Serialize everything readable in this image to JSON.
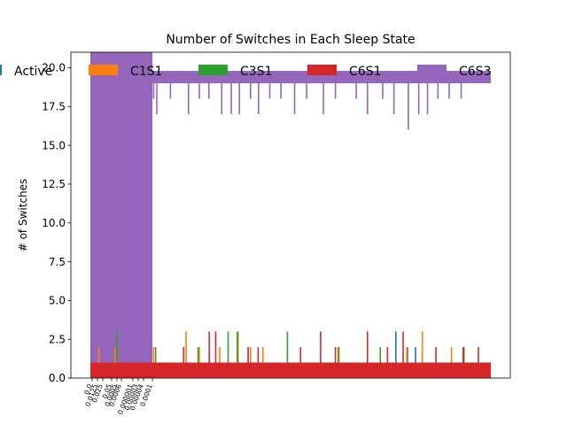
{
  "chart_data": {
    "type": "bar",
    "title": "Number of Switches in Each Sleep State",
    "xlabel": "",
    "ylabel": "# of Switches",
    "ylim": [
      0,
      21
    ],
    "yticks": [
      "0.0",
      "2.5",
      "5.0",
      "7.5",
      "10.0",
      "12.5",
      "15.0",
      "17.5",
      "20.0"
    ],
    "xtick_labels": [
      "0.0",
      "0.0125",
      "0.025",
      "0.05",
      "0.0005",
      "0.0006",
      "0.000001",
      "0.00003",
      "0.00004",
      "0.0001"
    ],
    "legend_position": "top",
    "series": [
      {
        "name": "Active",
        "color": "#1f77b4",
        "typical": 1,
        "spikes": [
          {
            "x": 0.763,
            "v": 3
          },
          {
            "x": 0.792,
            "v": 2
          },
          {
            "x": 0.812,
            "v": 2
          }
        ]
      },
      {
        "name": "C1S1",
        "color": "#ff7f0e",
        "typical": 1,
        "spikes": [
          {
            "x": 0.021,
            "v": 2
          },
          {
            "x": 0.062,
            "v": 2
          },
          {
            "x": 0.158,
            "v": 2
          },
          {
            "x": 0.239,
            "v": 3
          },
          {
            "x": 0.272,
            "v": 2
          },
          {
            "x": 0.323,
            "v": 2
          },
          {
            "x": 0.369,
            "v": 3
          },
          {
            "x": 0.4,
            "v": 2
          },
          {
            "x": 0.431,
            "v": 2
          },
          {
            "x": 0.621,
            "v": 2
          },
          {
            "x": 0.79,
            "v": 2
          },
          {
            "x": 0.829,
            "v": 3
          },
          {
            "x": 0.902,
            "v": 2
          },
          {
            "x": 0.933,
            "v": 2
          }
        ]
      },
      {
        "name": "C3S1",
        "color": "#2ca02c",
        "typical": 1,
        "spikes": [
          {
            "x": 0.066,
            "v": 3
          },
          {
            "x": 0.163,
            "v": 2
          },
          {
            "x": 0.269,
            "v": 2
          },
          {
            "x": 0.344,
            "v": 3
          },
          {
            "x": 0.367,
            "v": 3
          },
          {
            "x": 0.492,
            "v": 3
          },
          {
            "x": 0.619,
            "v": 2
          },
          {
            "x": 0.724,
            "v": 2
          },
          {
            "x": 0.933,
            "v": 2
          }
        ]
      },
      {
        "name": "C6S1",
        "color": "#d62728",
        "typical": 1,
        "spikes": [
          {
            "x": 0.233,
            "v": 2
          },
          {
            "x": 0.297,
            "v": 3
          },
          {
            "x": 0.313,
            "v": 3
          },
          {
            "x": 0.394,
            "v": 2
          },
          {
            "x": 0.419,
            "v": 2
          },
          {
            "x": 0.525,
            "v": 2
          },
          {
            "x": 0.575,
            "v": 3
          },
          {
            "x": 0.612,
            "v": 2
          },
          {
            "x": 0.692,
            "v": 3
          },
          {
            "x": 0.742,
            "v": 2
          },
          {
            "x": 0.781,
            "v": 3
          },
          {
            "x": 0.863,
            "v": 2
          },
          {
            "x": 0.931,
            "v": 2
          },
          {
            "x": 0.969,
            "v": 2
          }
        ]
      },
      {
        "name": "C6S3",
        "color": "#9467bd",
        "typical": 19,
        "saturated_until": 0.155,
        "dips": [
          {
            "x": 0.158,
            "v": 18
          },
          {
            "x": 0.166,
            "v": 17
          },
          {
            "x": 0.2,
            "v": 18
          },
          {
            "x": 0.245,
            "v": 17
          },
          {
            "x": 0.272,
            "v": 18
          },
          {
            "x": 0.296,
            "v": 18
          },
          {
            "x": 0.328,
            "v": 17
          },
          {
            "x": 0.352,
            "v": 17
          },
          {
            "x": 0.372,
            "v": 17
          },
          {
            "x": 0.4,
            "v": 18
          },
          {
            "x": 0.42,
            "v": 17
          },
          {
            "x": 0.448,
            "v": 18
          },
          {
            "x": 0.476,
            "v": 18
          },
          {
            "x": 0.51,
            "v": 17
          },
          {
            "x": 0.54,
            "v": 18
          },
          {
            "x": 0.582,
            "v": 17
          },
          {
            "x": 0.612,
            "v": 18
          },
          {
            "x": 0.664,
            "v": 18
          },
          {
            "x": 0.692,
            "v": 17
          },
          {
            "x": 0.73,
            "v": 18
          },
          {
            "x": 0.758,
            "v": 17
          },
          {
            "x": 0.794,
            "v": 16
          },
          {
            "x": 0.82,
            "v": 17
          },
          {
            "x": 0.842,
            "v": 17
          },
          {
            "x": 0.868,
            "v": 18
          },
          {
            "x": 0.896,
            "v": 18
          },
          {
            "x": 0.926,
            "v": 18
          }
        ]
      }
    ]
  }
}
